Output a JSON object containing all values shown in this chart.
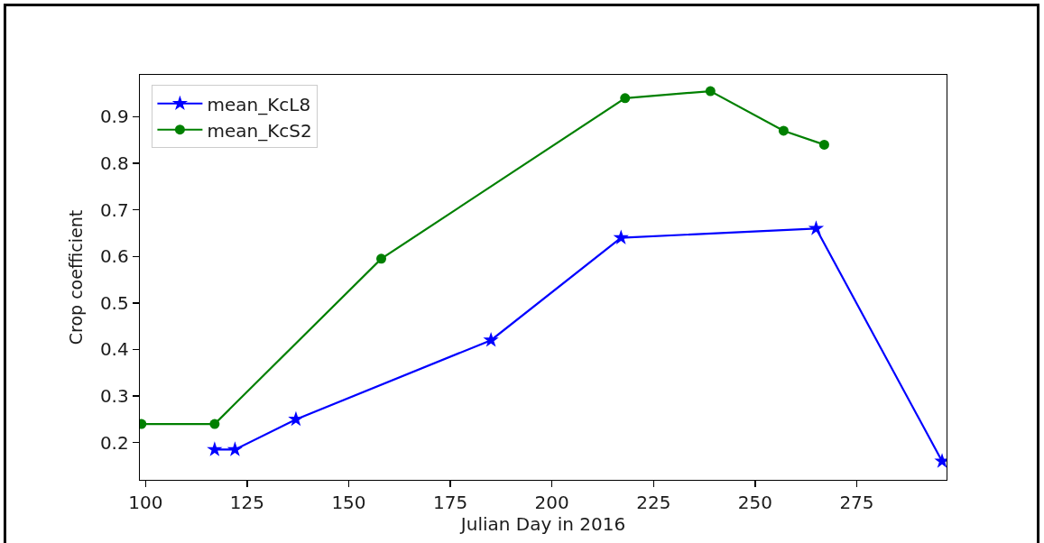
{
  "chart_data": {
    "type": "line",
    "xlabel": "Julian Day in 2016",
    "ylabel": "Crop coefficient",
    "xlim": [
      98.6,
      297.1
    ],
    "ylim": [
      0.12,
      0.99
    ],
    "xticks": [
      100,
      125,
      150,
      175,
      200,
      225,
      250,
      275
    ],
    "yticks": [
      0.2,
      0.3,
      0.4,
      0.5,
      0.6,
      0.7,
      0.8,
      0.9
    ],
    "legend": "top left",
    "line_style": "solid",
    "series": [
      {
        "name": "mean_KcL8",
        "color": "#0000ff",
        "marker": "star",
        "x": [
          117,
          122,
          137,
          185,
          217,
          265,
          296
        ],
        "values": [
          0.185,
          0.185,
          0.25,
          0.42,
          0.64,
          0.66,
          0.16
        ]
      },
      {
        "name": "mean_KcS2",
        "color": "#008000",
        "marker": "circle",
        "x": [
          99,
          117,
          158,
          218,
          239,
          257,
          267
        ],
        "values": [
          0.24,
          0.24,
          0.595,
          0.94,
          0.955,
          0.87,
          0.84
        ]
      }
    ]
  }
}
